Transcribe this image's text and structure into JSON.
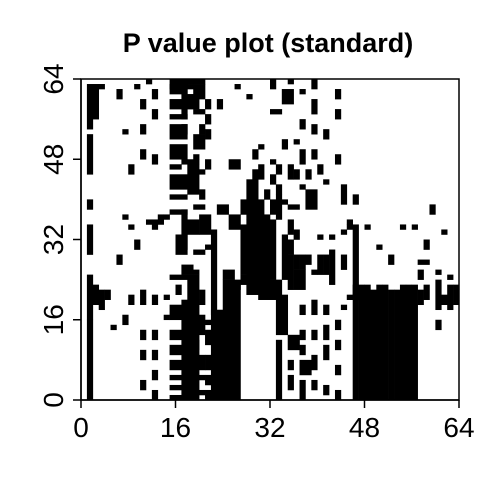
{
  "chart_data": {
    "type": "heatmap",
    "title": "P value plot (standard)",
    "xlabel": "",
    "ylabel": "",
    "xlim": [
      0,
      64
    ],
    "ylim": [
      0,
      64
    ],
    "x_ticks": [
      0,
      16,
      32,
      48,
      64
    ],
    "y_ticks": [
      0,
      16,
      32,
      48,
      64
    ],
    "colors": {
      "significant": "#000000",
      "background": "#ffffff"
    },
    "legend": "none",
    "grid": false,
    "blocks": [
      [
        1,
        0,
        2,
        16
      ],
      [
        1,
        16,
        2,
        25
      ],
      [
        1,
        29,
        2,
        35
      ],
      [
        1,
        38,
        2,
        40
      ],
      [
        1,
        45,
        2,
        53
      ],
      [
        1,
        54,
        2,
        63
      ],
      [
        2,
        19,
        3,
        23
      ],
      [
        2,
        56,
        3,
        63
      ],
      [
        3,
        18,
        4,
        22
      ],
      [
        3,
        62,
        4,
        63
      ],
      [
        4,
        20,
        5,
        22
      ],
      [
        5,
        14,
        6,
        15
      ],
      [
        7,
        53,
        8,
        54
      ],
      [
        7,
        36,
        8,
        37
      ],
      [
        8,
        19,
        9,
        21
      ],
      [
        8,
        34,
        9,
        35
      ],
      [
        9,
        62,
        10,
        63
      ],
      [
        10,
        19,
        11,
        22
      ],
      [
        11,
        35,
        12,
        36
      ],
      [
        11,
        63,
        12,
        64
      ],
      [
        12,
        19,
        13,
        21
      ],
      [
        12,
        34,
        13,
        36
      ],
      [
        13,
        35,
        14,
        37
      ],
      [
        14,
        20,
        15,
        21
      ],
      [
        14,
        16,
        15,
        17
      ],
      [
        14,
        36,
        15,
        37
      ],
      [
        15,
        62,
        16,
        63
      ],
      [
        16,
        21,
        17,
        23
      ],
      [
        17,
        0,
        20,
        20
      ],
      [
        18,
        20,
        20,
        25
      ],
      [
        17,
        25,
        19,
        27
      ],
      [
        17,
        30,
        18,
        33
      ],
      [
        17,
        33,
        20,
        36
      ],
      [
        17,
        36,
        18,
        38
      ],
      [
        18,
        41,
        20,
        47
      ],
      [
        17,
        47,
        20,
        48
      ],
      [
        17,
        53,
        18,
        55
      ],
      [
        17,
        56,
        18,
        59
      ],
      [
        17,
        61,
        18,
        62
      ],
      [
        18,
        63,
        21,
        64
      ],
      [
        20,
        19,
        21,
        22
      ],
      [
        19,
        25,
        20,
        26
      ],
      [
        20,
        33,
        22,
        37
      ],
      [
        21,
        30,
        22,
        31
      ],
      [
        20,
        40,
        21,
        42
      ],
      [
        20,
        53,
        21,
        55
      ],
      [
        17,
        58,
        20,
        61
      ],
      [
        18,
        62,
        19,
        63
      ],
      [
        22,
        0,
        24,
        18
      ],
      [
        22,
        17,
        23,
        34
      ],
      [
        23,
        37,
        25,
        39
      ],
      [
        23,
        58,
        24,
        60
      ],
      [
        24,
        0,
        27,
        24
      ],
      [
        24,
        24,
        26,
        26
      ],
      [
        26,
        22,
        27,
        23
      ],
      [
        25,
        34,
        27,
        37
      ],
      [
        25,
        46,
        27,
        48
      ],
      [
        26,
        62,
        27,
        63
      ],
      [
        27,
        23,
        28,
        25
      ],
      [
        27,
        25,
        29,
        35
      ],
      [
        27,
        37,
        28,
        40
      ],
      [
        28,
        21,
        30,
        36
      ],
      [
        28,
        36,
        30,
        44
      ],
      [
        29,
        44,
        30,
        46
      ],
      [
        29,
        48,
        30,
        50
      ],
      [
        28,
        60,
        29,
        61
      ],
      [
        30,
        20,
        32,
        37
      ],
      [
        30,
        37,
        31,
        40
      ],
      [
        31,
        40,
        32,
        42
      ],
      [
        30,
        44,
        31,
        47
      ],
      [
        30,
        50,
        31,
        51
      ],
      [
        32,
        20,
        34,
        24
      ],
      [
        32,
        24,
        33,
        36
      ],
      [
        33,
        36,
        34,
        41
      ],
      [
        32,
        43,
        33,
        45
      ],
      [
        33,
        45,
        34,
        47
      ],
      [
        34,
        24,
        35,
        33
      ],
      [
        34,
        39,
        35,
        40
      ],
      [
        34,
        50,
        35,
        52
      ],
      [
        35,
        22,
        36,
        29
      ],
      [
        35,
        29,
        36,
        32
      ],
      [
        36,
        22,
        38,
        26
      ],
      [
        36,
        26,
        37,
        29
      ],
      [
        35,
        33,
        36,
        36
      ],
      [
        36,
        32,
        37,
        34
      ],
      [
        35,
        38,
        37,
        39
      ],
      [
        36,
        51,
        37,
        52
      ],
      [
        37,
        26,
        38,
        29
      ],
      [
        38,
        27,
        39,
        29
      ],
      [
        38,
        38,
        40,
        42
      ],
      [
        37,
        42,
        38,
        43
      ],
      [
        39,
        25,
        40,
        26
      ],
      [
        40,
        25,
        41,
        29
      ],
      [
        40,
        32,
        41,
        33
      ],
      [
        41,
        25,
        42,
        29
      ],
      [
        42,
        23,
        43,
        30
      ],
      [
        42,
        32,
        43,
        33
      ],
      [
        41,
        43,
        42,
        44
      ],
      [
        44,
        26,
        45,
        29
      ],
      [
        45,
        35,
        46,
        36
      ],
      [
        44,
        39,
        45,
        43
      ],
      [
        45,
        20,
        47,
        21
      ],
      [
        46,
        20,
        47,
        23
      ],
      [
        45,
        34,
        46,
        35
      ],
      [
        46,
        0,
        47,
        35
      ],
      [
        47,
        0,
        48,
        20
      ],
      [
        47,
        20,
        48,
        23
      ],
      [
        48,
        0,
        49,
        23
      ],
      [
        49,
        0,
        50,
        22
      ],
      [
        50,
        0,
        51,
        23
      ],
      [
        51,
        0,
        52,
        23
      ],
      [
        52,
        0,
        53,
        22
      ],
      [
        53,
        0,
        54,
        22
      ],
      [
        54,
        0,
        55,
        23
      ],
      [
        55,
        0,
        56,
        23
      ],
      [
        56,
        0,
        57,
        23
      ],
      [
        57,
        19,
        58,
        22
      ],
      [
        57,
        24,
        58,
        26
      ],
      [
        58,
        20,
        59,
        23
      ],
      [
        57,
        27,
        59,
        28
      ],
      [
        60,
        18,
        61,
        24
      ],
      [
        61,
        19,
        62,
        21
      ],
      [
        62,
        18,
        63,
        23
      ],
      [
        63,
        19,
        64,
        23
      ],
      [
        62,
        24,
        63,
        25
      ],
      [
        15,
        0,
        18,
        1
      ],
      [
        15,
        2,
        18,
        3
      ],
      [
        15,
        4,
        18,
        5
      ],
      [
        15,
        6,
        18,
        8
      ],
      [
        15,
        9,
        18,
        11
      ],
      [
        15,
        12,
        17,
        14
      ],
      [
        15,
        16,
        18,
        19
      ],
      [
        15,
        37,
        18,
        38
      ],
      [
        15,
        40,
        18,
        41
      ],
      [
        15,
        42,
        18,
        45
      ],
      [
        15,
        46,
        17,
        47
      ],
      [
        15,
        48,
        18,
        51
      ],
      [
        15,
        52,
        18,
        55
      ],
      [
        15,
        56,
        18,
        57
      ],
      [
        15,
        58,
        17,
        60
      ],
      [
        15,
        61,
        18,
        64
      ],
      [
        16,
        29,
        18,
        33
      ],
      [
        15,
        24,
        18,
        25
      ],
      [
        19,
        1,
        21,
        2
      ],
      [
        19,
        4,
        21,
        5
      ],
      [
        19,
        6,
        21,
        9
      ],
      [
        19,
        10,
        20,
        12
      ],
      [
        19,
        13,
        21,
        17
      ],
      [
        19,
        29,
        21,
        30
      ],
      [
        19,
        45,
        21,
        46
      ],
      [
        19,
        48,
        20,
        49
      ],
      [
        19,
        50,
        21,
        53
      ],
      [
        19,
        57,
        21,
        58
      ],
      [
        19,
        60,
        21,
        63
      ],
      [
        19,
        38,
        21,
        39
      ],
      [
        21,
        0,
        22,
        2
      ],
      [
        21,
        3,
        22,
        5
      ],
      [
        21,
        6,
        22,
        9
      ],
      [
        21,
        11,
        22,
        14
      ],
      [
        21,
        15,
        22,
        16
      ],
      [
        21,
        46,
        22,
        48
      ],
      [
        21,
        52,
        22,
        54
      ],
      [
        21,
        55,
        22,
        57
      ],
      [
        21,
        58,
        22,
        60
      ],
      [
        33,
        0,
        34,
        12
      ],
      [
        33,
        13,
        35,
        21
      ],
      [
        32,
        37,
        33,
        40
      ],
      [
        33,
        41,
        34,
        43
      ],
      [
        32,
        47,
        33,
        48
      ],
      [
        32,
        57,
        34,
        58
      ],
      [
        32,
        62,
        33,
        64
      ],
      [
        35,
        2,
        36,
        5
      ],
      [
        35,
        6,
        36,
        8
      ],
      [
        35,
        10,
        37,
        13
      ],
      [
        35,
        44,
        36,
        47
      ],
      [
        34,
        59,
        36,
        62
      ],
      [
        35,
        63,
        36,
        64
      ],
      [
        37,
        0,
        38,
        4
      ],
      [
        37,
        5,
        39,
        8
      ],
      [
        37,
        9,
        38,
        11
      ],
      [
        37,
        12,
        38,
        14
      ],
      [
        37,
        17,
        38,
        19
      ],
      [
        37,
        47,
        38,
        50
      ],
      [
        37,
        54,
        38,
        56
      ],
      [
        37,
        61,
        38,
        62
      ],
      [
        39,
        2,
        40,
        4
      ],
      [
        39,
        6,
        40,
        9
      ],
      [
        39,
        12,
        40,
        14
      ],
      [
        39,
        17,
        40,
        20
      ],
      [
        39,
        48,
        40,
        50
      ],
      [
        39,
        53,
        40,
        55
      ],
      [
        39,
        57,
        40,
        60
      ],
      [
        39,
        62,
        40,
        64
      ],
      [
        38,
        44,
        39,
        46
      ],
      [
        36,
        44,
        37,
        46
      ],
      [
        40,
        45,
        41,
        47
      ],
      [
        41,
        1,
        42,
        3
      ],
      [
        41,
        8,
        42,
        11
      ],
      [
        41,
        12,
        42,
        15
      ],
      [
        41,
        17,
        42,
        19
      ],
      [
        41,
        52,
        42,
        54
      ],
      [
        43,
        0,
        44,
        2
      ],
      [
        43,
        5,
        44,
        7
      ],
      [
        43,
        10,
        44,
        12
      ],
      [
        43,
        14,
        44,
        16
      ],
      [
        43,
        47,
        44,
        49
      ],
      [
        43,
        56,
        44,
        58
      ],
      [
        43,
        60,
        44,
        62
      ],
      [
        12,
        0,
        13,
        2
      ],
      [
        12,
        4,
        13,
        6
      ],
      [
        12,
        8,
        13,
        10
      ],
      [
        12,
        12,
        13,
        14
      ],
      [
        12,
        47,
        13,
        49
      ],
      [
        12,
        56,
        13,
        58
      ],
      [
        12,
        60,
        13,
        62
      ],
      [
        10,
        2,
        11,
        4
      ],
      [
        10,
        8,
        11,
        10
      ],
      [
        10,
        12,
        11,
        14
      ],
      [
        10,
        48,
        11,
        50
      ],
      [
        10,
        53,
        11,
        55
      ],
      [
        10,
        58,
        11,
        60
      ],
      [
        7,
        15,
        8,
        17
      ],
      [
        6,
        27,
        7,
        29
      ],
      [
        9,
        30,
        10,
        32
      ],
      [
        8,
        45,
        9,
        47
      ],
      [
        6,
        60,
        7,
        62
      ],
      [
        44,
        18,
        45,
        19
      ],
      [
        44,
        33,
        45,
        34
      ],
      [
        48,
        34,
        49,
        35
      ],
      [
        50,
        30,
        51,
        31
      ],
      [
        52,
        27,
        53,
        29
      ],
      [
        56,
        34,
        57,
        35
      ],
      [
        58,
        30,
        59,
        32
      ],
      [
        60,
        14,
        61,
        16
      ],
      [
        60,
        25,
        61,
        26
      ],
      [
        61,
        33,
        62,
        34
      ],
      [
        59,
        37,
        60,
        39
      ],
      [
        54,
        34,
        55,
        35
      ],
      [
        46,
        39,
        47,
        41
      ]
    ]
  }
}
